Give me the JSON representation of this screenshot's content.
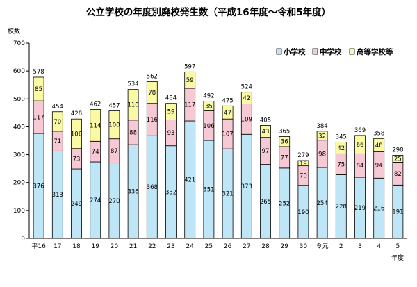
{
  "chart_data": {
    "type": "bar",
    "stacked": true,
    "title": "公立学校の年度別廃校発生数（平成16年度～令和5年度）",
    "ylabel": "校数",
    "xlabel": "年度",
    "ylim": [
      0,
      700
    ],
    "yticks": [
      0,
      100,
      200,
      300,
      400,
      500,
      600,
      700
    ],
    "grid": false,
    "legend_position": "top-right",
    "categories": [
      "平16",
      "17",
      "18",
      "19",
      "20",
      "21",
      "22",
      "23",
      "24",
      "25",
      "26",
      "27",
      "28",
      "29",
      "30",
      "令元",
      "2",
      "3",
      "4",
      "5"
    ],
    "series": [
      {
        "name": "小学校",
        "color": "#bfe6f6",
        "values": [
          376,
          313,
          249,
          274,
          270,
          336,
          368,
          332,
          421,
          351,
          321,
          373,
          265,
          252,
          190,
          254,
          228,
          219,
          216,
          191
        ]
      },
      {
        "name": "中学校",
        "color": "#f7c9d5",
        "values": [
          117,
          71,
          73,
          74,
          87,
          88,
          116,
          93,
          117,
          106,
          107,
          109,
          97,
          77,
          70,
          98,
          75,
          84,
          94,
          82
        ]
      },
      {
        "name": "高等学校等",
        "color": "#fafaa6",
        "values": [
          85,
          70,
          106,
          114,
          100,
          110,
          78,
          59,
          59,
          35,
          47,
          42,
          43,
          36,
          19,
          32,
          42,
          66,
          48,
          25
        ]
      }
    ],
    "totals": [
      578,
      454,
      428,
      462,
      457,
      534,
      562,
      484,
      597,
      492,
      475,
      524,
      405,
      365,
      279,
      384,
      345,
      369,
      358,
      298
    ]
  }
}
